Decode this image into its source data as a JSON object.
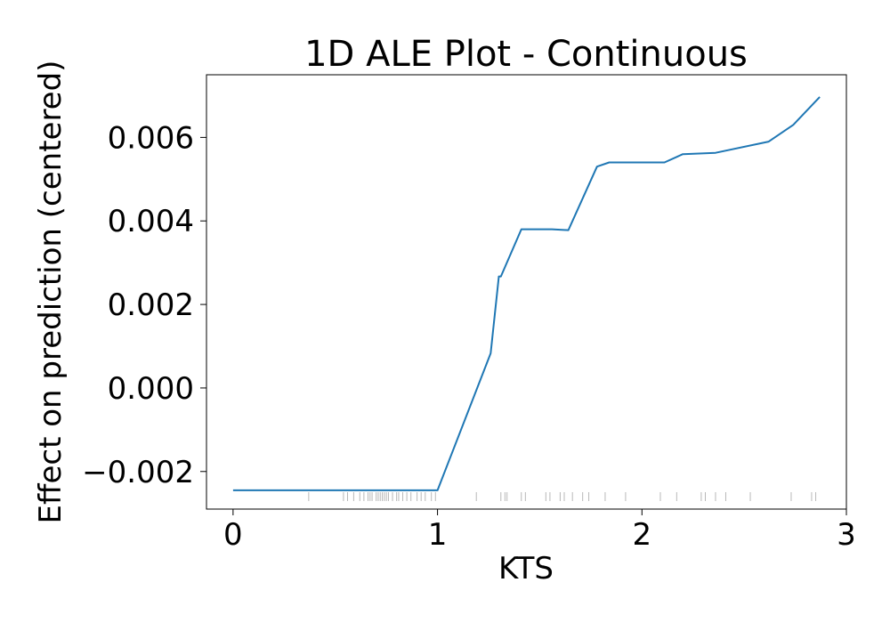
{
  "chart_data": {
    "type": "line",
    "title": "1D ALE Plot - Continuous",
    "xlabel": "KTS",
    "ylabel": "Effect on prediction (centered)",
    "xlim": [
      -0.13,
      3.0
    ],
    "ylim": [
      -0.0029,
      0.0075
    ],
    "xticks": [
      0,
      1,
      2,
      3
    ],
    "yticks": [
      -0.002,
      0.0,
      0.002,
      0.004,
      0.006
    ],
    "ytick_labels": [
      "−0.002",
      "0.000",
      "0.002",
      "0.004",
      "0.006"
    ],
    "xtick_labels": [
      "0",
      "1",
      "2",
      "3"
    ],
    "grid": false,
    "colors": {
      "line": "#1f77b4",
      "rug": "#000000"
    },
    "series": [
      {
        "x": [
          0.0,
          1.0,
          1.26,
          1.3,
          1.31,
          1.41,
          1.56,
          1.64,
          1.78,
          1.84,
          2.11,
          2.2,
          2.36,
          2.62,
          2.74,
          2.87
        ],
        "y": [
          -0.00245,
          -0.00245,
          0.00083,
          0.00267,
          0.00267,
          0.0038,
          0.0038,
          0.00378,
          0.0053,
          0.0054,
          0.0054,
          0.0056,
          0.00563,
          0.0059,
          0.0063,
          0.00697
        ]
      }
    ],
    "rug_x": [
      0.37,
      0.54,
      0.56,
      0.59,
      0.62,
      0.64,
      0.66,
      0.67,
      0.68,
      0.7,
      0.71,
      0.72,
      0.73,
      0.74,
      0.75,
      0.76,
      0.78,
      0.8,
      0.81,
      0.83,
      0.85,
      0.87,
      0.9,
      0.92,
      0.94,
      0.97,
      0.99,
      1.19,
      1.31,
      1.33,
      1.34,
      1.41,
      1.43,
      1.53,
      1.55,
      1.6,
      1.62,
      1.66,
      1.71,
      1.74,
      1.82,
      1.92,
      2.09,
      2.17,
      2.29,
      2.31,
      2.36,
      2.41,
      2.53,
      2.73,
      2.83,
      2.85
    ]
  }
}
